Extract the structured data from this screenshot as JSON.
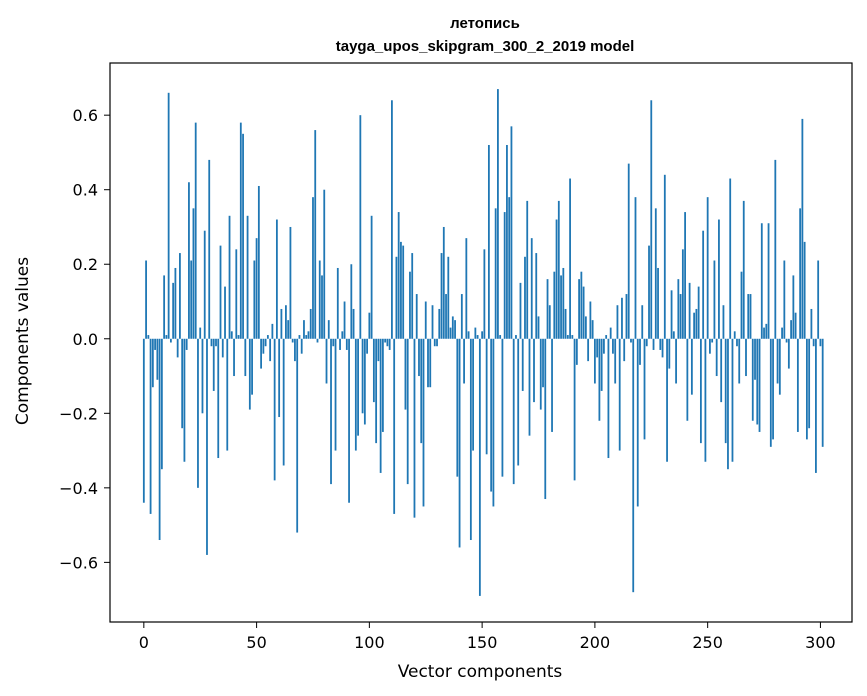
{
  "chart_data": {
    "type": "bar",
    "title": "летопись",
    "subtitle": "tayga_upos_skipgram_300_2_2019 model",
    "xlabel": "Vector components",
    "ylabel": "Components values",
    "xlim": [
      -15,
      314
    ],
    "ylim": [
      -0.76,
      0.74
    ],
    "xticks": [
      0,
      50,
      100,
      150,
      200,
      250,
      300
    ],
    "yticks": [
      -0.6,
      -0.4,
      -0.2,
      0.0,
      0.2,
      0.4,
      0.6
    ],
    "ytick_labels": [
      "−0.6",
      "−0.4",
      "−0.2",
      "0.0",
      "0.2",
      "0.4",
      "0.6"
    ],
    "xtick_labels": [
      "0",
      "50",
      "100",
      "150",
      "200",
      "250",
      "300"
    ],
    "bar_color": "#1f77b4",
    "grid": false,
    "values": [
      -0.44,
      0.21,
      0.01,
      -0.47,
      -0.13,
      -0.03,
      -0.11,
      -0.54,
      -0.35,
      0.17,
      0.01,
      0.66,
      -0.01,
      0.15,
      0.19,
      -0.05,
      0.23,
      -0.24,
      -0.33,
      -0.03,
      0.42,
      0.21,
      0.35,
      0.58,
      -0.4,
      0.03,
      -0.2,
      0.29,
      -0.58,
      0.48,
      -0.02,
      -0.14,
      -0.02,
      -0.32,
      0.25,
      -0.05,
      0.14,
      -0.3,
      0.33,
      0.02,
      -0.1,
      0.24,
      0.01,
      0.58,
      0.55,
      -0.1,
      0.33,
      -0.19,
      -0.15,
      0.21,
      0.27,
      0.41,
      -0.08,
      -0.04,
      -0.02,
      0.01,
      -0.06,
      0.04,
      -0.38,
      0.32,
      -0.21,
      0.08,
      -0.34,
      0.09,
      0.05,
      0.3,
      -0.01,
      -0.06,
      -0.52,
      0.01,
      -0.04,
      0.05,
      0.01,
      0.02,
      0.08,
      0.38,
      0.56,
      -0.01,
      0.21,
      0.17,
      0.4,
      -0.12,
      0.05,
      -0.39,
      -0.02,
      -0.3,
      0.19,
      -0.03,
      0.02,
      0.1,
      -0.03,
      -0.44,
      0.2,
      0.08,
      -0.3,
      -0.26,
      0.6,
      -0.2,
      -0.23,
      -0.04,
      0.07,
      0.33,
      -0.17,
      -0.28,
      -0.06,
      -0.36,
      -0.25,
      -0.01,
      -0.02,
      -0.03,
      0.64,
      -0.47,
      0.22,
      0.34,
      0.26,
      0.25,
      -0.19,
      -0.39,
      0.18,
      0.23,
      -0.48,
      0.12,
      -0.1,
      -0.28,
      -0.45,
      0.1,
      -0.13,
      -0.13,
      0.09,
      -0.02,
      -0.02,
      0.08,
      0.23,
      0.3,
      0.12,
      0.22,
      0.03,
      0.06,
      0.05,
      -0.37,
      -0.56,
      0.12,
      -0.12,
      0.27,
      0.02,
      -0.54,
      -0.3,
      0.03,
      0.01,
      -0.69,
      0.02,
      0.24,
      -0.31,
      0.52,
      -0.41,
      -0.45,
      0.35,
      0.67,
      0.01,
      -0.37,
      0.34,
      0.52,
      0.38,
      0.57,
      -0.39,
      0.01,
      -0.34,
      0.15,
      -0.14,
      0.22,
      0.37,
      -0.26,
      0.27,
      -0.17,
      0.23,
      0.06,
      -0.19,
      -0.13,
      -0.43,
      0.16,
      0.09,
      -0.25,
      0.18,
      0.32,
      0.37,
      0.17,
      0.19,
      0.08,
      0.01,
      0.43,
      0.01,
      -0.38,
      -0.07,
      0.16,
      0.18,
      0.14,
      0.06,
      -0.06,
      0.1,
      0.05,
      -0.12,
      -0.05,
      -0.22,
      -0.14,
      -0.04,
      0.01,
      -0.32,
      0.03,
      -0.04,
      -0.12,
      0.09,
      -0.3,
      0.11,
      -0.06,
      0.12,
      0.47,
      -0.01,
      -0.68,
      0.38,
      -0.45,
      -0.07,
      0.09,
      -0.27,
      -0.02,
      0.25,
      0.64,
      -0.03,
      0.35,
      0.19,
      -0.03,
      -0.05,
      0.44,
      -0.33,
      -0.08,
      0.13,
      0.02,
      -0.12,
      0.16,
      0.12,
      0.24,
      0.34,
      -0.22,
      0.15,
      -0.15,
      0.07,
      0.08,
      0.14,
      -0.28,
      0.29,
      -0.33,
      0.38,
      -0.04,
      -0.01,
      0.21,
      -0.1,
      0.32,
      -0.17,
      0.09,
      -0.28,
      -0.35,
      0.43,
      -0.33,
      0.02,
      -0.02,
      -0.12,
      0.18,
      0.37,
      -0.1,
      0.12,
      0.12,
      -0.22,
      -0.11,
      -0.23,
      -0.25,
      0.31,
      0.03,
      0.04,
      0.31,
      -0.29,
      -0.27,
      0.48,
      -0.12,
      -0.15,
      0.03,
      0.21,
      -0.01,
      -0.08,
      0.05,
      0.17,
      0.07,
      -0.25,
      0.35,
      0.59,
      0.26,
      -0.27,
      -0.24,
      0.08,
      -0.02,
      -0.36,
      0.21,
      -0.02,
      -0.29
    ]
  }
}
